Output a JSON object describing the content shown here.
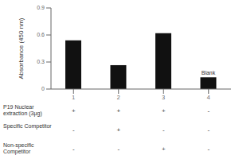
{
  "chart_data": {
    "type": "bar",
    "categories": [
      "1",
      "2",
      "3",
      "4"
    ],
    "values": [
      0.54,
      0.265,
      0.62,
      0.13
    ],
    "color": "#111111",
    "ylabel": "Absorbance (450 nm)",
    "ylim": [
      0,
      0.9
    ],
    "yticks": [
      0,
      0.3,
      0.6,
      0.9
    ],
    "grid": false,
    "annotations": [
      {
        "text": "Blank",
        "category": "4"
      }
    ],
    "table_rows": [
      {
        "label": "P19 Nuclear\nextraction (3μg)",
        "values": [
          "+",
          "+",
          "+",
          "-"
        ]
      },
      {
        "label": "Specific Competitor",
        "values": [
          "-",
          "+",
          "-",
          "-"
        ]
      },
      {
        "label": "Non-specific\nCompetitor",
        "values": [
          "-",
          "-",
          "+",
          "-"
        ]
      }
    ]
  }
}
